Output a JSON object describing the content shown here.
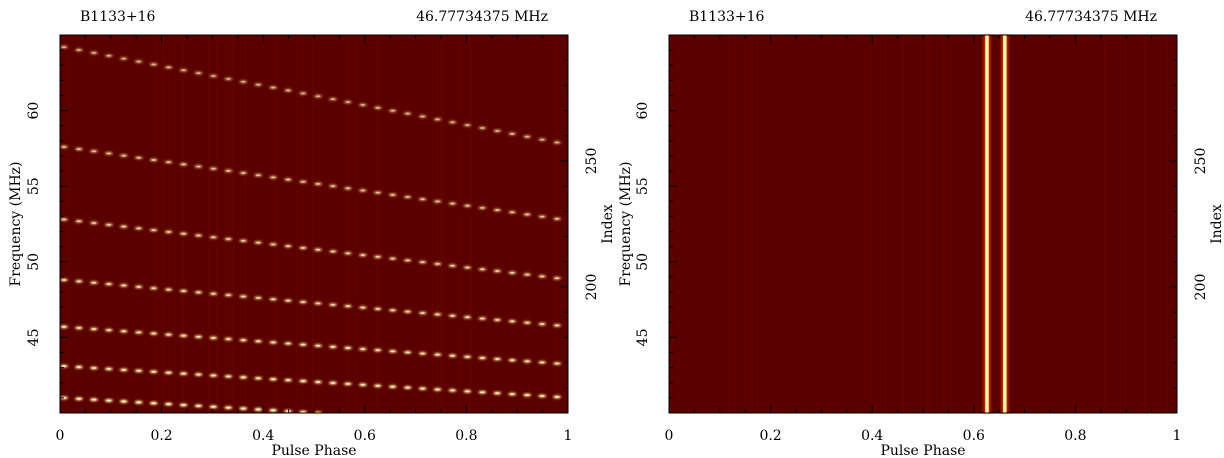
{
  "colors": {
    "background": "#5a0000",
    "pulse": "#ffe08a",
    "pulse_core": "#fff6c8",
    "axis": "#000000"
  },
  "chart_data": [
    {
      "type": "heatmap",
      "title": "B1133+16",
      "subtitle": "46.77734375 MHz",
      "xlabel": "Pulse Phase",
      "ylabel": "Frequency (MHz)",
      "y2label": "Index",
      "xlim": [
        0,
        1
      ],
      "ylim": [
        40,
        65
      ],
      "y2lim": [
        150,
        300
      ],
      "xticks": [
        "0",
        "0.2",
        "0.4",
        "0.6",
        "0.8",
        "1"
      ],
      "yticks": [
        "45",
        "50",
        "55",
        "60"
      ],
      "y2ticks": [
        "200",
        "250"
      ],
      "dispersed_tracks": [
        {
          "x_start": 0.0,
          "y_start": 64.2,
          "x_end": 1.0,
          "y_end": 57.7
        },
        {
          "x_start": 0.0,
          "y_start": 57.6,
          "x_end": 1.0,
          "y_end": 52.7
        },
        {
          "x_start": 0.0,
          "y_start": 52.8,
          "x_end": 1.0,
          "y_end": 48.8
        },
        {
          "x_start": 0.0,
          "y_start": 48.8,
          "x_end": 1.0,
          "y_end": 45.7
        },
        {
          "x_start": 0.0,
          "y_start": 45.7,
          "x_end": 1.0,
          "y_end": 43.2
        },
        {
          "x_start": 0.0,
          "y_start": 43.1,
          "x_end": 1.0,
          "y_end": 41.0
        },
        {
          "x_start": 0.0,
          "y_start": 41.0,
          "x_end": 0.5,
          "y_end": 40.0
        }
      ]
    },
    {
      "type": "heatmap",
      "title": "B1133+16",
      "subtitle": "46.77734375 MHz",
      "xlabel": "Pulse Phase",
      "ylabel": "Frequency (MHz)",
      "y2label": "Index",
      "xlim": [
        0,
        1
      ],
      "ylim": [
        40,
        65
      ],
      "y2lim": [
        150,
        300
      ],
      "xticks": [
        "0",
        "0.2",
        "0.4",
        "0.6",
        "0.8",
        "1"
      ],
      "yticks": [
        "45",
        "50",
        "55",
        "60"
      ],
      "y2ticks": [
        "200",
        "250"
      ],
      "dedispersed_components": [
        {
          "x": 0.626
        },
        {
          "x": 0.661
        }
      ]
    }
  ]
}
